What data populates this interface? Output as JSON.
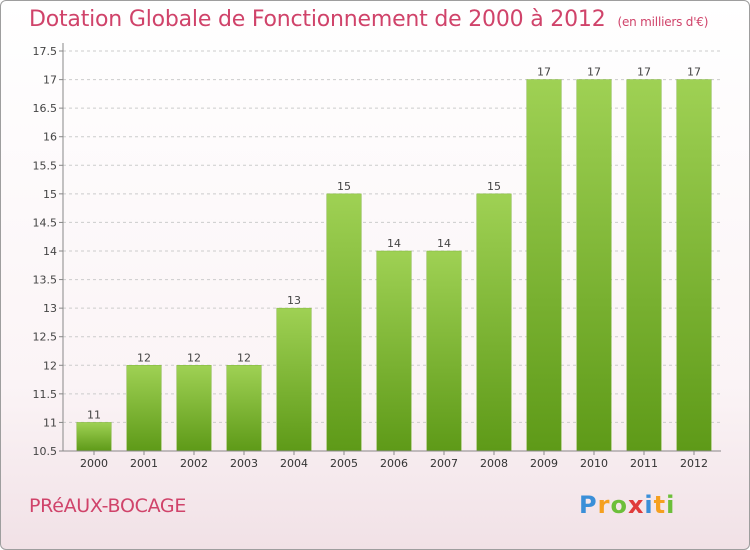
{
  "header": {
    "title": "Dotation Globale de Fonctionnement de 2000 à 2012",
    "subtitle": "(en milliers d'€)"
  },
  "footer": {
    "commune": "PRéAUX-BOCAGE",
    "logo_letters": [
      "P",
      "r",
      "o",
      "x",
      "i",
      "t",
      "i"
    ],
    "logo_colors": [
      "#3a8fd8",
      "#f5a020",
      "#6cbf3a",
      "#e03a3a",
      "#3a8fd8",
      "#f5a020",
      "#6cbf3a"
    ]
  },
  "colors": {
    "bar_top": "#9fd154",
    "bar_bottom": "#5e9a18",
    "title": "#d0436a",
    "grid": "#cccccc"
  },
  "chart_data": {
    "type": "bar",
    "title": "Dotation Globale de Fonctionnement de 2000 à 2012",
    "subtitle": "(en milliers d'€)",
    "xlabel": "",
    "ylabel": "",
    "categories": [
      "2000",
      "2001",
      "2002",
      "2003",
      "2004",
      "2005",
      "2006",
      "2007",
      "2008",
      "2009",
      "2010",
      "2011",
      "2012"
    ],
    "values": [
      11,
      12,
      12,
      12,
      13,
      15,
      14,
      14,
      15,
      17,
      17,
      17,
      17
    ],
    "data_labels": [
      "11",
      "12",
      "12",
      "12",
      "13",
      "15",
      "14",
      "14",
      "15",
      "17",
      "17",
      "17",
      "17"
    ],
    "ylim": [
      10.5,
      17.5
    ],
    "yticks": [
      10.5,
      11,
      11.5,
      12,
      12.5,
      13,
      13.5,
      14,
      14.5,
      15,
      15.5,
      16,
      16.5,
      17,
      17.5
    ],
    "ytick_labels": [
      "10.5",
      "11",
      "11.5",
      "12",
      "12.5",
      "13",
      "13.5",
      "14",
      "14.5",
      "15",
      "15.5",
      "16",
      "16.5",
      "17",
      "17.5"
    ],
    "grid": "horizontal dashed",
    "legend": "none"
  }
}
